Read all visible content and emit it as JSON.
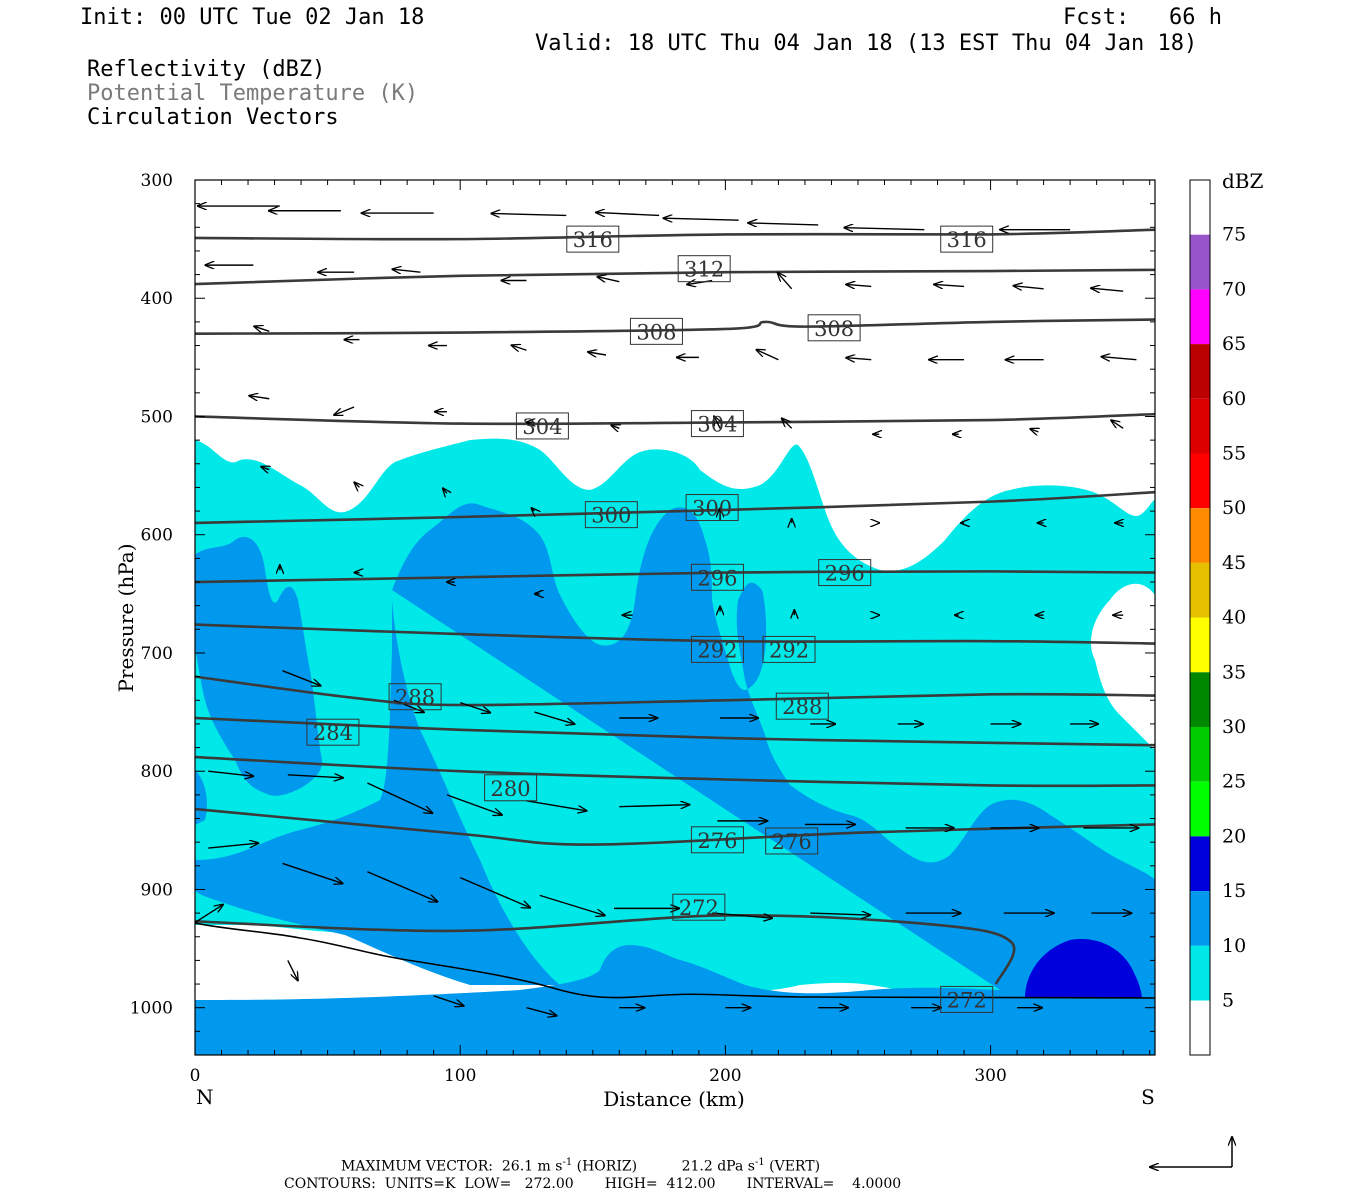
{
  "header": {
    "init": "Init: 00 UTC Tue 02 Jan 18",
    "fcst": "Fcst:   66 h",
    "valid": "Valid: 18 UTC Thu 04 Jan 18 (13 EST Thu 04 Jan 18)",
    "field1": "Reflectivity (dBZ)",
    "field2": "Potential Temperature (K)",
    "field3": "Circulation Vectors"
  },
  "footer": {
    "max_label": "MAXIMUM VECTOR:",
    "max_horiz": "26.1 m s",
    "max_horiz_tail": "(HORIZ)",
    "max_vert": "21.2 dPa s",
    "max_vert_tail": "(VERT)",
    "exp": "-1",
    "contours": "CONTOURS:  UNITS=K  LOW=   272.00       HIGH=  412.00       INTERVAL=    4.0000"
  },
  "chart_data": {
    "type": "cross-section",
    "xlabel": "Distance (km)",
    "ylabel": "Pressure (hPa)",
    "x_ticks": [
      0,
      100,
      200,
      300
    ],
    "y_ticks": [
      300,
      400,
      500,
      600,
      700,
      800,
      900,
      1000
    ],
    "xlim": [
      0,
      362
    ],
    "ylim": [
      300,
      1040
    ],
    "x_end_labels": {
      "left": "N",
      "right": "S"
    },
    "colorbar": {
      "unit": "dBZ",
      "labels": [
        "5",
        "10",
        "15",
        "20",
        "25",
        "30",
        "35",
        "40",
        "45",
        "50",
        "55",
        "60",
        "65",
        "70",
        "75"
      ],
      "colors": [
        "#00e8e8",
        "#0099ee",
        "#0000dd",
        "#00ff00",
        "#00cc00",
        "#008800",
        "#ffff00",
        "#e6c000",
        "#ff8c00",
        "#ff0000",
        "#dd0000",
        "#bb0000",
        "#ff00ff",
        "#9955cc",
        "#ffffff"
      ]
    },
    "theta_contours": [
      {
        "value": 316,
        "points": [
          [
            0,
            349
          ],
          [
            100,
            350
          ],
          [
            200,
            346
          ],
          [
            300,
            346
          ],
          [
            362,
            342
          ]
        ],
        "labels": [
          [
            150,
            350
          ],
          [
            291,
            350
          ]
        ]
      },
      {
        "value": 312,
        "points": [
          [
            0,
            388
          ],
          [
            100,
            381
          ],
          [
            200,
            378
          ],
          [
            300,
            377
          ],
          [
            362,
            376
          ]
        ],
        "labels": [
          [
            192,
            375
          ]
        ]
      },
      {
        "value": 308,
        "points": [
          [
            0,
            430
          ],
          [
            100,
            429
          ],
          [
            200,
            426
          ],
          [
            215,
            420
          ],
          [
            230,
            424
          ],
          [
            300,
            420
          ],
          [
            362,
            418
          ]
        ],
        "labels": [
          [
            174,
            428
          ],
          [
            241,
            425
          ]
        ]
      },
      {
        "value": 304,
        "points": [
          [
            0,
            500
          ],
          [
            100,
            506
          ],
          [
            200,
            505
          ],
          [
            300,
            503
          ],
          [
            362,
            498
          ]
        ],
        "labels": [
          [
            131,
            508
          ],
          [
            197,
            506
          ]
        ]
      },
      {
        "value": 300,
        "points": [
          [
            0,
            590
          ],
          [
            100,
            585
          ],
          [
            200,
            579
          ],
          [
            300,
            572
          ],
          [
            362,
            564
          ]
        ],
        "labels": [
          [
            157,
            583
          ],
          [
            195,
            577
          ]
        ]
      },
      {
        "value": 296,
        "points": [
          [
            0,
            640
          ],
          [
            100,
            636
          ],
          [
            200,
            632
          ],
          [
            300,
            631
          ],
          [
            362,
            632
          ]
        ],
        "labels": [
          [
            197,
            636
          ],
          [
            245,
            632
          ]
        ]
      },
      {
        "value": 292,
        "points": [
          [
            0,
            676
          ],
          [
            100,
            684
          ],
          [
            200,
            690
          ],
          [
            300,
            690
          ],
          [
            362,
            692
          ]
        ],
        "labels": [
          [
            197,
            697
          ],
          [
            224,
            697
          ]
        ]
      },
      {
        "value": 288,
        "points": [
          [
            0,
            720
          ],
          [
            60,
            738
          ],
          [
            100,
            744
          ],
          [
            200,
            740
          ],
          [
            300,
            735
          ],
          [
            362,
            736
          ]
        ],
        "labels": [
          [
            83,
            737
          ],
          [
            229,
            745
          ]
        ]
      },
      {
        "value": 284,
        "points": [
          [
            0,
            755
          ],
          [
            100,
            765
          ],
          [
            200,
            772
          ],
          [
            300,
            776
          ],
          [
            362,
            778
          ]
        ],
        "labels": [
          [
            52,
            767
          ]
        ]
      },
      {
        "value": 280,
        "points": [
          [
            0,
            788
          ],
          [
            100,
            800
          ],
          [
            200,
            807
          ],
          [
            300,
            812
          ],
          [
            362,
            812
          ]
        ],
        "labels": [
          [
            119,
            814
          ]
        ]
      },
      {
        "value": 276,
        "points": [
          [
            0,
            832
          ],
          [
            100,
            853
          ],
          [
            150,
            862
          ],
          [
            250,
            852
          ],
          [
            362,
            845
          ]
        ],
        "labels": [
          [
            197,
            858
          ],
          [
            225,
            859
          ]
        ]
      },
      {
        "value": 272,
        "points": [
          [
            0,
            927
          ],
          [
            100,
            935
          ],
          [
            200,
            922
          ],
          [
            280,
            930
          ],
          [
            308,
            945
          ],
          [
            302,
            980
          ]
        ],
        "labels": [
          [
            190,
            915
          ],
          [
            291,
            993
          ]
        ]
      }
    ],
    "vectors_note": "circulation vectors (u,w)"
  }
}
